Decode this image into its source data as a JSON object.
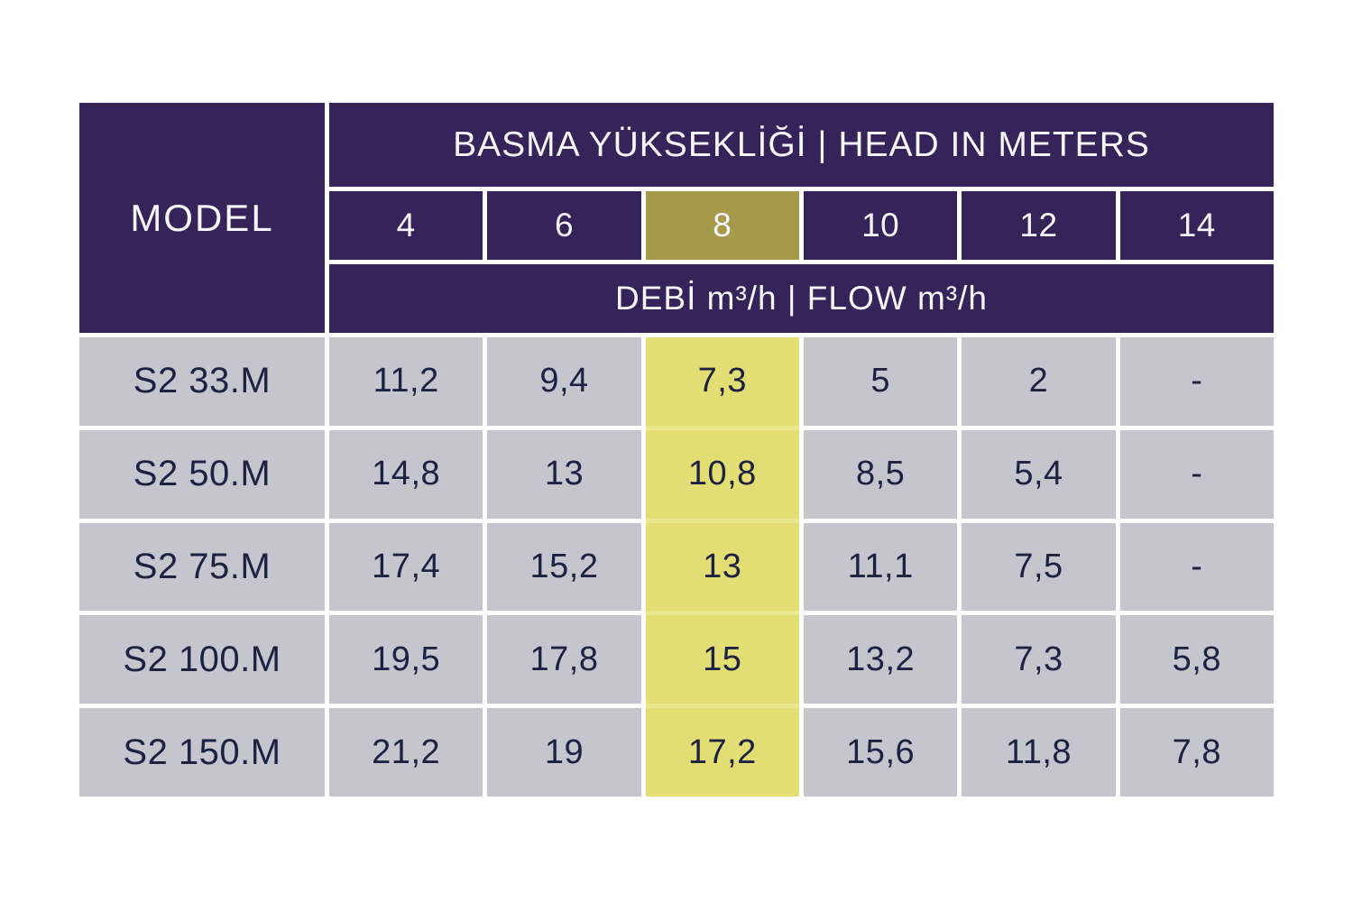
{
  "table": {
    "header": {
      "model_label": "MODEL",
      "title": "BASMA YÜKSEKLİĞİ | HEAD IN METERS",
      "head_values": [
        "4",
        "6",
        "8",
        "10",
        "12",
        "14"
      ],
      "highlighted_head_value": "8",
      "flow_label": "DEBİ m³/h | FLOW m³/h"
    },
    "rows": [
      {
        "model": "S2 33.M",
        "values": [
          "11,2",
          "9,4",
          "7,3",
          "5",
          "2",
          "-"
        ]
      },
      {
        "model": "S2 50.M",
        "values": [
          "14,8",
          "13",
          "10,8",
          "8,5",
          "5,4",
          "-"
        ]
      },
      {
        "model": "S2 75.M",
        "values": [
          "17,4",
          "15,2",
          "13",
          "11,1",
          "7,5",
          "-"
        ]
      },
      {
        "model": "S2 100.M",
        "values": [
          "19,5",
          "17,8",
          "15",
          "13,2",
          "7,3",
          "5,8"
        ]
      },
      {
        "model": "S2 150.M",
        "values": [
          "21,2",
          "19",
          "17,2",
          "15,6",
          "11,8",
          "7,8"
        ]
      }
    ],
    "highlight_column_index": 2,
    "colors": {
      "header_purple": "#362359",
      "highlight_head_olive": "#a6994a",
      "highlight_cell_yellow": "#e2de74",
      "highlight_gap_pale_yellow": "#eae88e",
      "row_gray": "#c6c4cd",
      "text_dark_navy": "#1d2142",
      "text_white": "#f7f6fa"
    }
  },
  "chart_data": {
    "type": "table",
    "title": "BASMA YÜKSEKLİĞİ | HEAD IN METERS",
    "subtitle": "DEBİ m³/h | FLOW m³/h",
    "columns": [
      "MODEL",
      "4",
      "6",
      "8",
      "10",
      "12",
      "14"
    ],
    "rows": [
      [
        "S2 33.M",
        "11,2",
        "9,4",
        "7,3",
        "5",
        "2",
        "-"
      ],
      [
        "S2 50.M",
        "14,8",
        "13",
        "10,8",
        "8,5",
        "5,4",
        "-"
      ],
      [
        "S2 75.M",
        "17,4",
        "15,2",
        "13",
        "11,1",
        "7,5",
        "-"
      ],
      [
        "S2 100.M",
        "19,5",
        "17,8",
        "15",
        "13,2",
        "7,3",
        "5,8"
      ],
      [
        "S2 150.M",
        "21,2",
        "19",
        "17,2",
        "15,6",
        "11,8",
        "7,8"
      ]
    ],
    "highlighted_column": "8"
  }
}
